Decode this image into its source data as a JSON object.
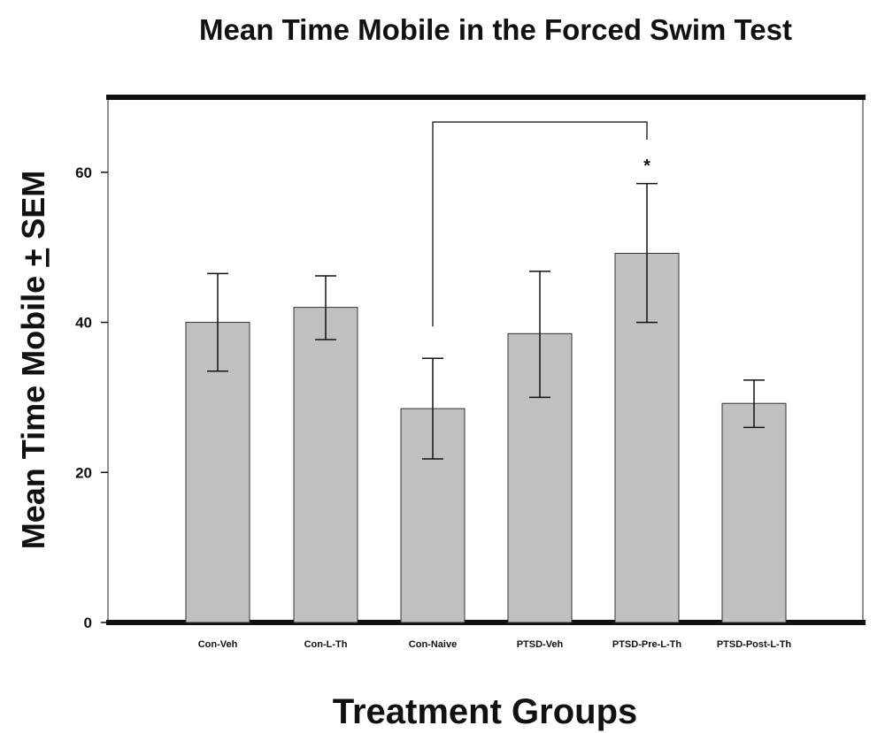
{
  "chart_data": {
    "type": "bar",
    "title": "Mean Time Mobile in the Forced Swim Test",
    "xlabel": "Treatment Groups",
    "ylabel": "Mean Time Mobile + SEM",
    "categories": [
      "Con-Veh",
      "Con-L-Th",
      "Con-Naive",
      "PTSD-Veh",
      "PTSD-Pre-L-Th",
      "PTSD-Post-L-Th"
    ],
    "values": [
      40,
      42,
      28.5,
      38.5,
      49.2,
      29.2
    ],
    "error_upper": [
      46.5,
      46.2,
      35.2,
      46.8,
      58.5,
      32.3
    ],
    "error_lower": [
      33.5,
      37.7,
      21.8,
      30,
      40,
      26
    ],
    "ylim": [
      0,
      70
    ],
    "yticks": [
      "0",
      "20",
      "40",
      "60"
    ],
    "grid": false,
    "bar_color": "#c0c0c0",
    "significance": {
      "from": "Con-Naive",
      "to": "PTSD-Pre-L-Th",
      "marker": "*"
    }
  }
}
